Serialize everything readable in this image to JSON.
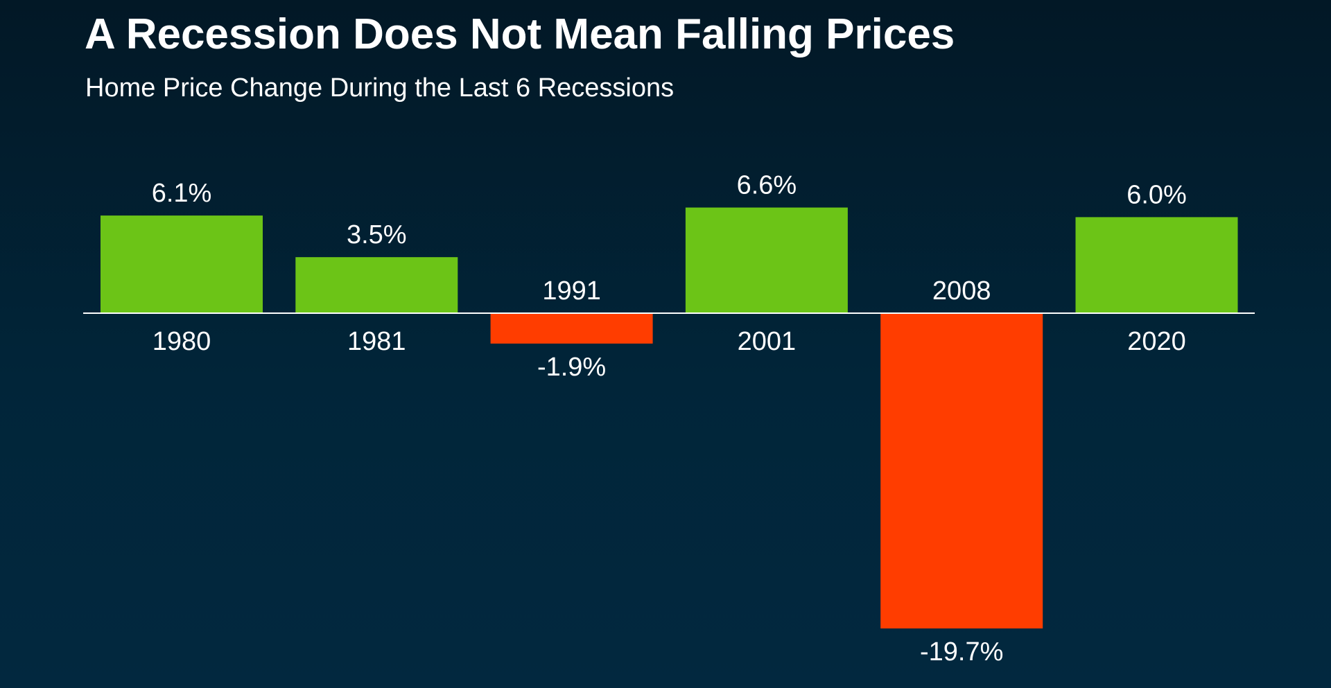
{
  "header": {
    "title": "A Recession Does Not Mean Falling Prices",
    "subtitle": "Home Price Change During the Last 6 Recessions"
  },
  "colors": {
    "positive": "#6cc417",
    "negative": "#ff3d00",
    "axis": "#ffffff"
  },
  "chart_data": {
    "type": "bar",
    "title": "A Recession Does Not Mean Falling Prices",
    "subtitle": "Home Price Change During the Last 6 Recessions",
    "categories": [
      "1980",
      "1981",
      "1991",
      "2001",
      "2008",
      "2020"
    ],
    "values": [
      6.1,
      3.5,
      -1.9,
      6.6,
      -19.7,
      6.0
    ],
    "value_labels": [
      "6.1%",
      "3.5%",
      "-1.9%",
      "6.6%",
      "-19.7%",
      "6.0%"
    ],
    "xlabel": "",
    "ylabel": "",
    "ylim": [
      -19.7,
      6.6
    ],
    "grid": false,
    "legend": "none"
  }
}
